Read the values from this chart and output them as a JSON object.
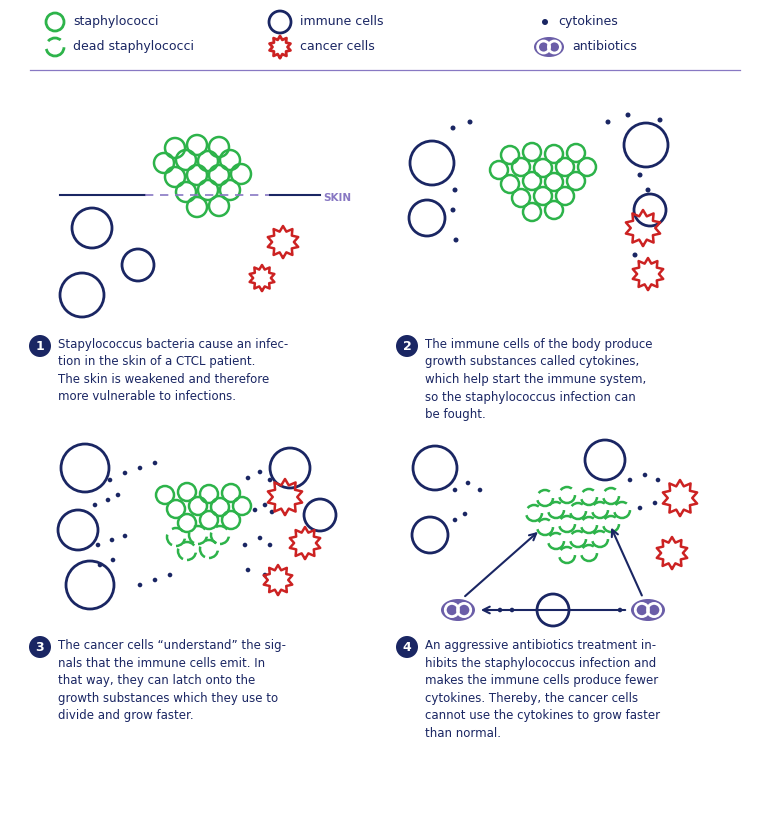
{
  "bg_color": "#ffffff",
  "dark_blue": "#1a2663",
  "green": "#2db34a",
  "red": "#cc2222",
  "purple": "#6b5ea8",
  "mid_purple": "#8878c3",
  "captions": [
    "Stapylococcus bacteria cause an infec-\ntion in the skin of a CTCL patient.\nThe skin is weakened and therefore\nmore vulnerable to infections.",
    "The immune cells of the body produce\ngrowth substances called cytokines,\nwhich help start the immune system,\nso the staphylococcus infection can\nbe fought.",
    "The cancer cells “understand” the sig-\nnals that the immune cells emit. In\nthat way, they can latch onto the\ngrowth substances which they use to\ndivide and grow faster.",
    "An aggressive antibiotics treatment in-\nhibits the staphylococcus infection and\nmakes the immune cells produce fewer\ncytokines. Thereby, the cancer cells\ncannot use the cytokines to grow faster\nthan normal."
  ]
}
